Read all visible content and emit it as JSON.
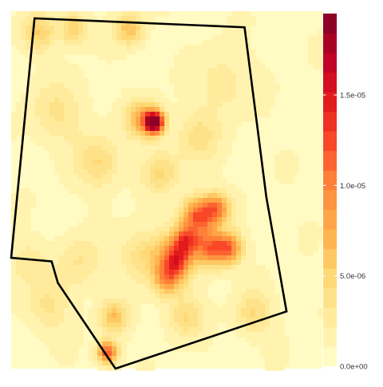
{
  "chart_data": {
    "type": "heatmap",
    "title": "",
    "xlabel": "",
    "ylabel": "",
    "legend_position": "right",
    "colorbar": {
      "min": 0,
      "max": 1.95e-05,
      "ticks": [
        {
          "value": 0,
          "label": "0.0e+00"
        },
        {
          "value": 5e-06,
          "label": "5.0e-06"
        },
        {
          "value": 1e-05,
          "label": "1.0e-05"
        },
        {
          "value": 1.5e-05,
          "label": "1.5e-05"
        }
      ],
      "bins": 18,
      "palette": [
        "#ffffcc",
        "#ffeda0",
        "#fed976",
        "#feb24c",
        "#fd8d3c",
        "#fc4e2a",
        "#e31a1c",
        "#bd0026",
        "#800026"
      ]
    },
    "hotspots": [
      {
        "x": 0.46,
        "y": 0.31,
        "intensity": 1.95e-05,
        "spread": 0.022
      },
      {
        "x": 0.42,
        "y": 0.3,
        "intensity": 6.5e-06,
        "spread": 0.035
      },
      {
        "x": 0.6,
        "y": 0.57,
        "intensity": 1.05e-05,
        "spread": 0.035
      },
      {
        "x": 0.66,
        "y": 0.55,
        "intensity": 8.5e-06,
        "spread": 0.03
      },
      {
        "x": 0.56,
        "y": 0.64,
        "intensity": 9.5e-06,
        "spread": 0.03
      },
      {
        "x": 0.64,
        "y": 0.66,
        "intensity": 9.5e-06,
        "spread": 0.035
      },
      {
        "x": 0.7,
        "y": 0.66,
        "intensity": 9e-06,
        "spread": 0.03
      },
      {
        "x": 0.53,
        "y": 0.7,
        "intensity": 7.5e-06,
        "spread": 0.03
      },
      {
        "x": 0.5,
        "y": 0.75,
        "intensity": 6e-06,
        "spread": 0.03
      },
      {
        "x": 0.52,
        "y": 0.69,
        "intensity": 5e-06,
        "spread": 0.05
      },
      {
        "x": 0.31,
        "y": 0.95,
        "intensity": 1.15e-05,
        "spread": 0.022
      },
      {
        "x": 0.33,
        "y": 0.85,
        "intensity": 5.5e-06,
        "spread": 0.03
      },
      {
        "x": 0.09,
        "y": 0.06,
        "intensity": 4.5e-06,
        "spread": 0.035
      },
      {
        "x": 0.2,
        "y": 0.05,
        "intensity": 4.5e-06,
        "spread": 0.03
      },
      {
        "x": 0.38,
        "y": 0.05,
        "intensity": 5.5e-06,
        "spread": 0.03
      },
      {
        "x": 0.48,
        "y": 0.45,
        "intensity": 3.5e-06,
        "spread": 0.04
      },
      {
        "x": 0.28,
        "y": 0.42,
        "intensity": 3.5e-06,
        "spread": 0.05
      },
      {
        "x": 0.15,
        "y": 0.28,
        "intensity": 2.5e-06,
        "spread": 0.06
      },
      {
        "x": 0.56,
        "y": 0.85,
        "intensity": 3.5e-06,
        "spread": 0.04
      },
      {
        "x": 0.78,
        "y": 0.84,
        "intensity": 3.5e-06,
        "spread": 0.04
      },
      {
        "x": 0.42,
        "y": 0.68,
        "intensity": 3e-06,
        "spread": 0.05
      },
      {
        "x": 0.6,
        "y": 0.35,
        "intensity": 2.8e-06,
        "spread": 0.05
      },
      {
        "x": 0.22,
        "y": 0.7,
        "intensity": 2.5e-06,
        "spread": 0.05
      },
      {
        "x": 0.68,
        "y": 0.2,
        "intensity": 2e-06,
        "spread": 0.06
      },
      {
        "x": 0.12,
        "y": 0.82,
        "intensity": 2.5e-06,
        "spread": 0.05
      },
      {
        "x": 0.05,
        "y": 0.7,
        "intensity": 2.2e-06,
        "spread": 0.04
      }
    ],
    "boundary": [
      [
        0.075,
        0.02
      ],
      [
        0.75,
        0.045
      ],
      [
        0.82,
        0.52
      ],
      [
        0.885,
        0.84
      ],
      [
        0.335,
        1.0
      ],
      [
        0.15,
        0.76
      ],
      [
        0.13,
        0.7
      ],
      [
        0.0,
        0.69
      ],
      [
        0.075,
        0.02
      ]
    ]
  }
}
